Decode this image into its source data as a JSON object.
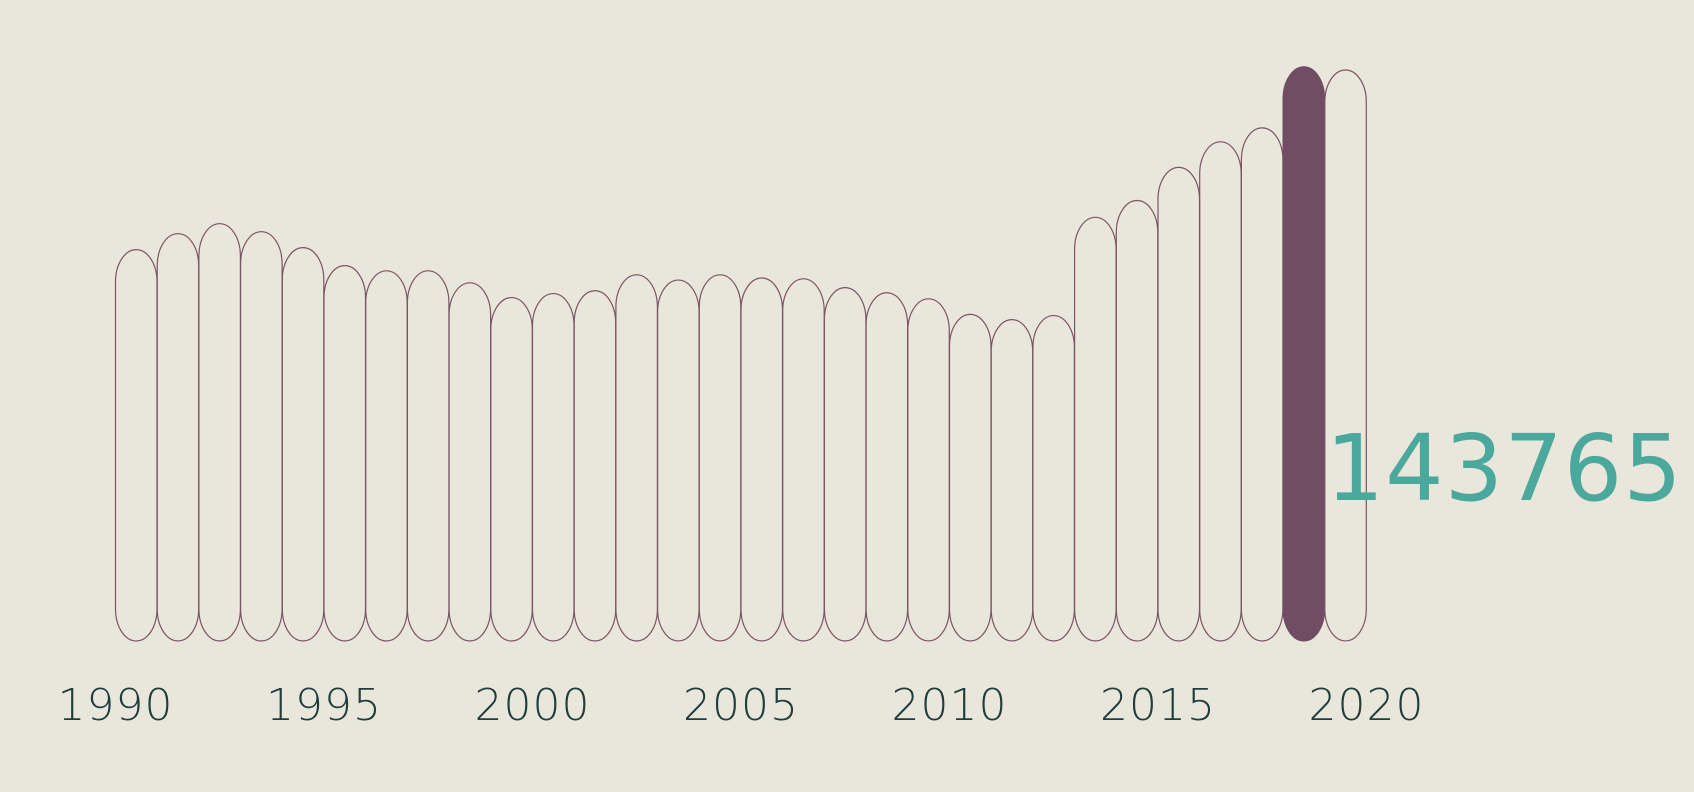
{
  "chart_data": {
    "type": "bar",
    "x": [
      1990,
      1991,
      1992,
      1993,
      1994,
      1995,
      1996,
      1997,
      1998,
      1999,
      2000,
      2001,
      2002,
      2003,
      2004,
      2005,
      2006,
      2007,
      2008,
      2009,
      2010,
      2011,
      2012,
      2013,
      2014,
      2015,
      2016,
      2017,
      2018,
      2019,
      2020
    ],
    "values": [
      98000,
      102000,
      104500,
      102500,
      98500,
      94000,
      92700,
      92700,
      89700,
      86000,
      87000,
      87700,
      91700,
      90400,
      91700,
      90900,
      90700,
      88500,
      87200,
      85700,
      81800,
      80500,
      81500,
      106100,
      110300,
      118600,
      125000,
      128500,
      143765,
      143000,
      0
    ],
    "highlight": {
      "year": 2018,
      "value": 143765,
      "label": "143765"
    },
    "tick_labels": [
      "1990",
      "1995",
      "2000",
      "2005",
      "2010",
      "2015",
      "2020"
    ],
    "ylim": [
      0,
      150000
    ],
    "bar_shape": "rounded-pill",
    "grid": false,
    "legend": "none",
    "colors": {
      "background": "#e9e6dc",
      "bar_outline": "#7a5566",
      "highlight_fill": "#704d63",
      "value_text": "#4aa99c",
      "tick_text": "#1f3d3a"
    }
  }
}
